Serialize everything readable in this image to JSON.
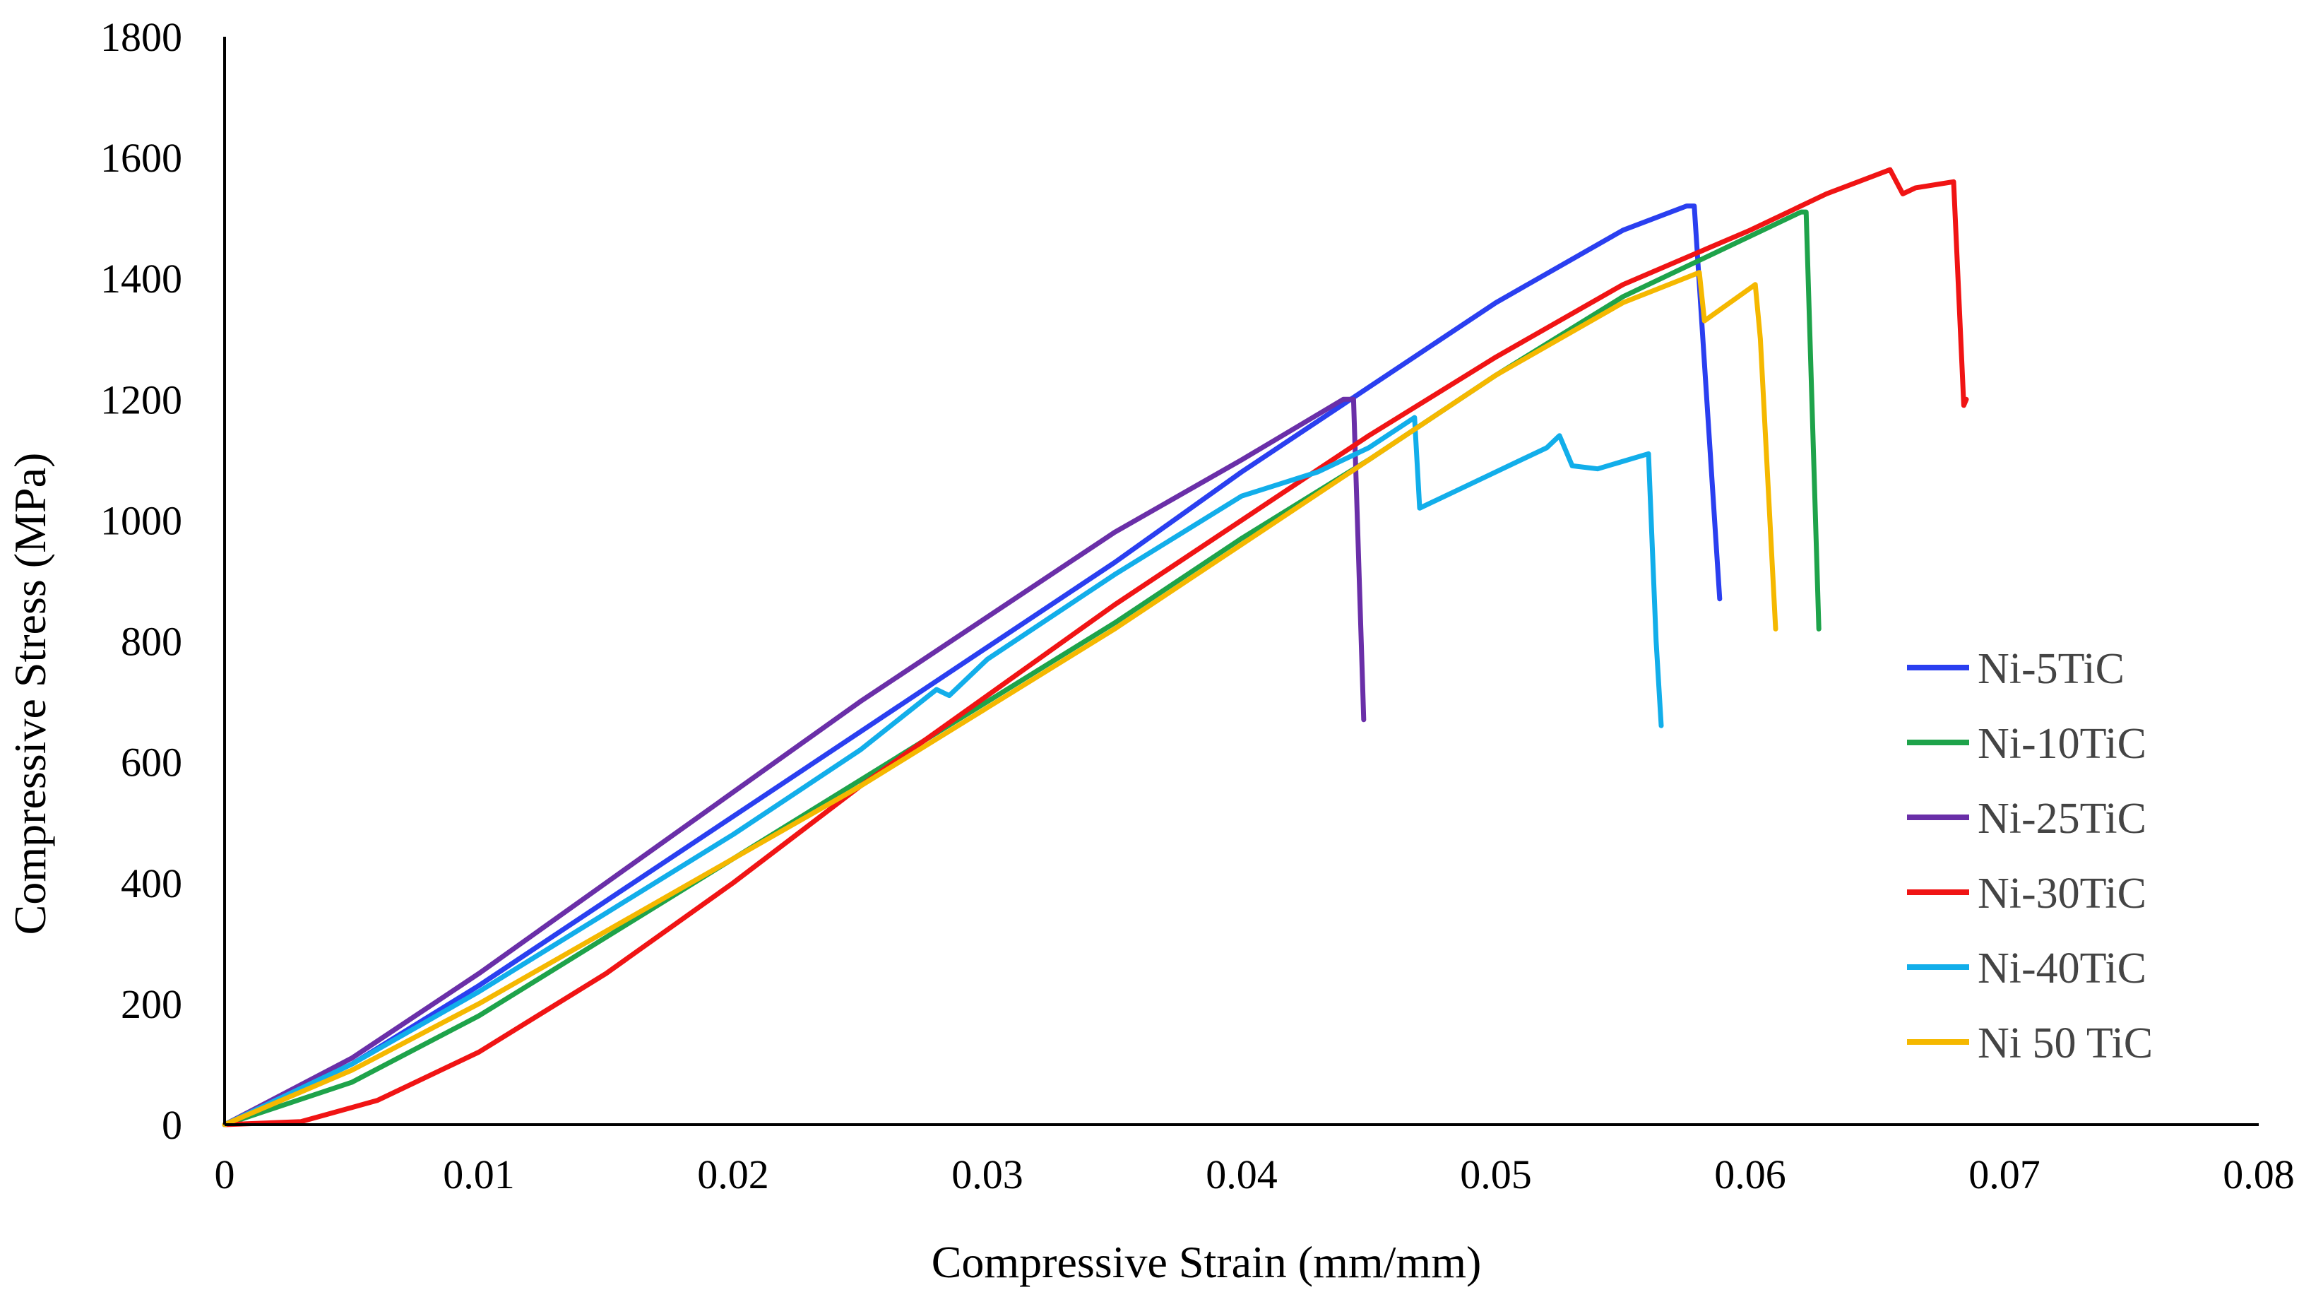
{
  "chart_data": {
    "type": "line",
    "title": "",
    "xlabel": "Compressive Strain (mm/mm)",
    "ylabel": "Compressive Stress (MPa)",
    "xlim": [
      0,
      0.08
    ],
    "ylim": [
      0,
      1800
    ],
    "x_ticks": [
      0,
      0.01,
      0.02,
      0.03,
      0.04,
      0.05,
      0.06,
      0.07,
      0.08
    ],
    "x_tick_labels": [
      "0",
      "0.01",
      "0.02",
      "0.03",
      "0.04",
      "0.05",
      "0.06",
      "0.07",
      "0.08"
    ],
    "y_ticks": [
      0,
      200,
      400,
      600,
      800,
      1000,
      1200,
      1400,
      1600,
      1800
    ],
    "y_tick_labels": [
      "0",
      "200",
      "400",
      "600",
      "800",
      "1000",
      "1200",
      "1400",
      "1600",
      "1800"
    ],
    "grid": false,
    "legend_position": "right",
    "series": [
      {
        "name": "Ni-5TiC",
        "color": "#2a3ff0",
        "x": [
          0,
          0.005,
          0.01,
          0.015,
          0.02,
          0.025,
          0.03,
          0.035,
          0.04,
          0.045,
          0.05,
          0.055,
          0.0575,
          0.0578,
          0.0588
        ],
        "y": [
          0,
          100,
          230,
          370,
          510,
          650,
          790,
          930,
          1080,
          1220,
          1360,
          1480,
          1520,
          1520,
          870
        ]
      },
      {
        "name": "Ni-10TiC",
        "color": "#1ea34a",
        "x": [
          0,
          0.005,
          0.01,
          0.015,
          0.02,
          0.025,
          0.03,
          0.035,
          0.04,
          0.045,
          0.05,
          0.055,
          0.06,
          0.062,
          0.0622,
          0.0627
        ],
        "y": [
          0,
          70,
          180,
          310,
          440,
          570,
          700,
          830,
          970,
          1100,
          1240,
          1370,
          1470,
          1510,
          1510,
          820
        ]
      },
      {
        "name": "Ni-25TiC",
        "color": "#6a2fa8",
        "x": [
          0,
          0.005,
          0.01,
          0.015,
          0.02,
          0.025,
          0.03,
          0.035,
          0.04,
          0.044,
          0.0444,
          0.0448
        ],
        "y": [
          0,
          110,
          250,
          400,
          550,
          700,
          840,
          980,
          1100,
          1200,
          1200,
          670
        ]
      },
      {
        "name": "Ni-30TiC",
        "color": "#f01414",
        "x": [
          0,
          0.003,
          0.006,
          0.01,
          0.015,
          0.02,
          0.025,
          0.03,
          0.035,
          0.04,
          0.045,
          0.05,
          0.055,
          0.06,
          0.063,
          0.0655,
          0.066,
          0.0665,
          0.068,
          0.0684,
          0.0685
        ],
        "y": [
          0,
          5,
          40,
          120,
          250,
          400,
          560,
          710,
          860,
          1000,
          1140,
          1270,
          1390,
          1480,
          1540,
          1580,
          1540,
          1550,
          1560,
          1190,
          1200
        ]
      },
      {
        "name": "Ni-40TiC",
        "color": "#12aeea",
        "x": [
          0,
          0.005,
          0.01,
          0.015,
          0.02,
          0.025,
          0.028,
          0.0285,
          0.03,
          0.035,
          0.04,
          0.043,
          0.045,
          0.0468,
          0.047,
          0.049,
          0.052,
          0.0525,
          0.053,
          0.054,
          0.056,
          0.0563,
          0.0565
        ],
        "y": [
          0,
          100,
          220,
          350,
          480,
          620,
          720,
          710,
          770,
          910,
          1040,
          1080,
          1120,
          1170,
          1020,
          1060,
          1120,
          1140,
          1090,
          1085,
          1110,
          800,
          660
        ]
      },
      {
        "name": "Ni 50 TiC",
        "color": "#f5b800",
        "x": [
          0,
          0.005,
          0.01,
          0.015,
          0.02,
          0.025,
          0.03,
          0.035,
          0.04,
          0.045,
          0.05,
          0.055,
          0.058,
          0.0582,
          0.0602,
          0.0604,
          0.061
        ],
        "y": [
          0,
          90,
          200,
          320,
          440,
          560,
          690,
          820,
          960,
          1100,
          1240,
          1360,
          1410,
          1330,
          1390,
          1300,
          820
        ]
      }
    ]
  }
}
